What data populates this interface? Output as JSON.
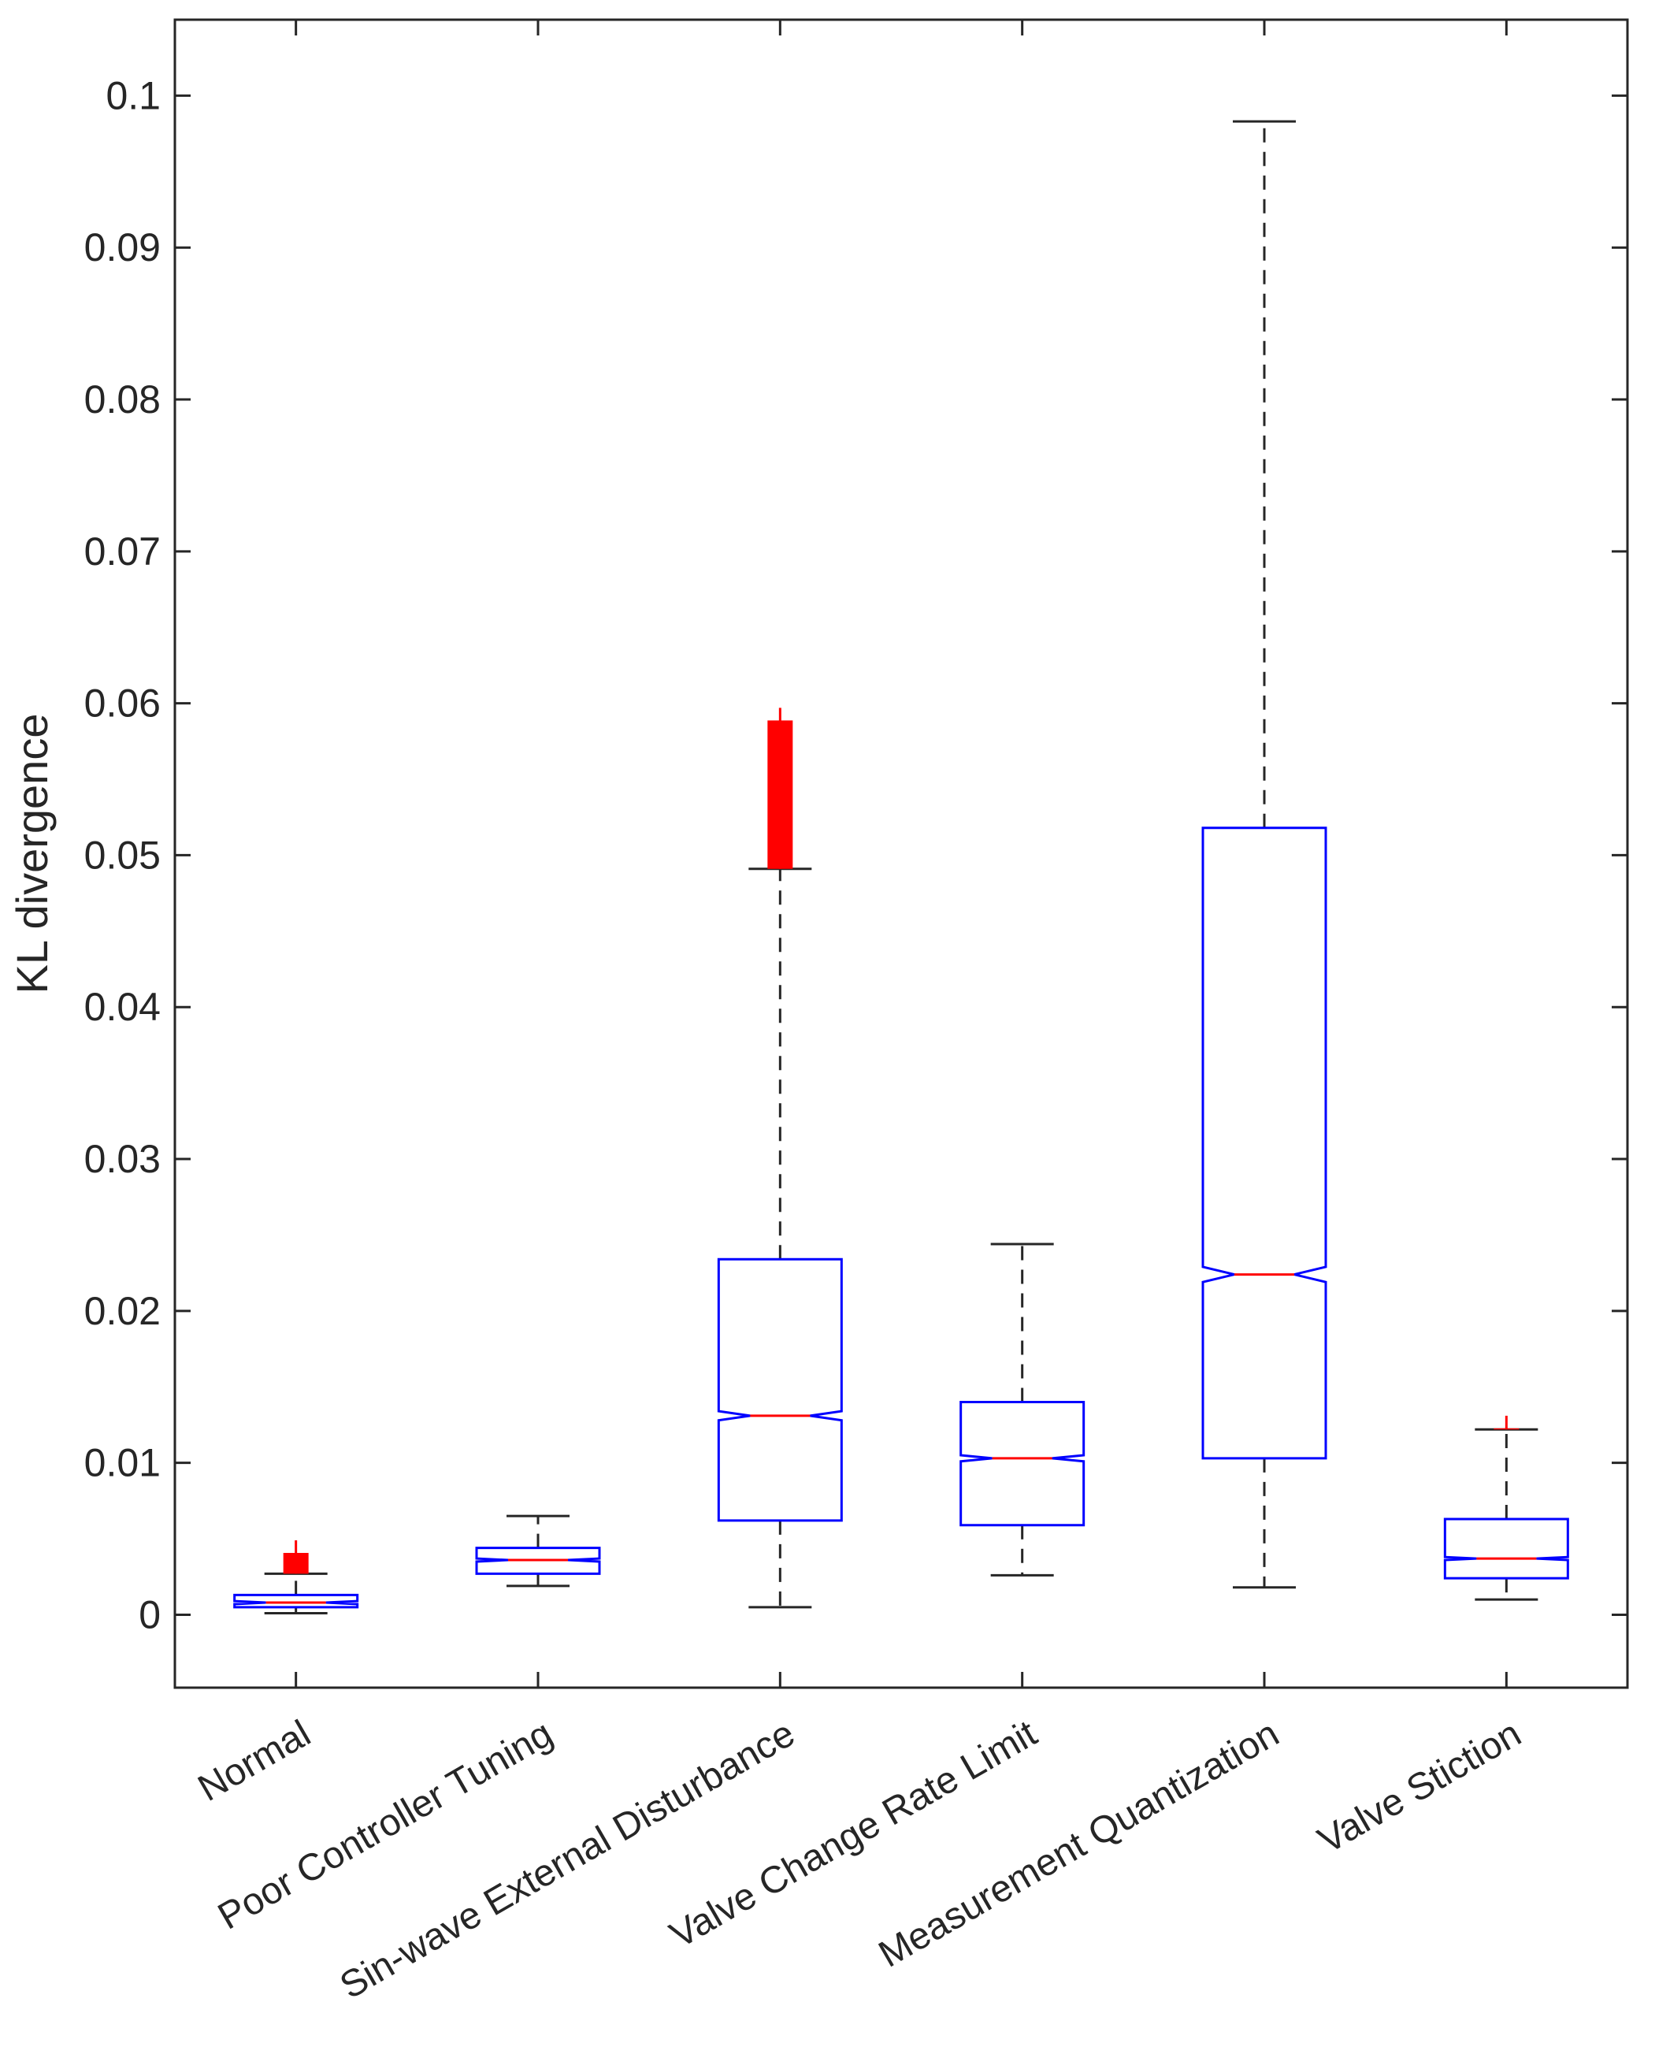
{
  "chart_data": {
    "type": "boxplot",
    "title": "",
    "xlabel": "",
    "ylabel": "KL divergence",
    "ylim": [
      -0.0048,
      0.105
    ],
    "yticks": [
      0,
      0.01,
      0.02,
      0.03,
      0.04,
      0.05,
      0.06,
      0.07,
      0.08,
      0.09,
      0.1
    ],
    "ytick_labels": [
      "0",
      "0.01",
      "0.02",
      "0.03",
      "0.04",
      "0.05",
      "0.06",
      "0.07",
      "0.08",
      "0.09",
      "0.1"
    ],
    "notched": true,
    "categories": [
      "Normal",
      "Poor Controller Tuning",
      "Sin-wave External Disturbance",
      "Valve Change Rate Limit",
      "Measurement Quantization",
      "Valve Stiction"
    ],
    "boxes": [
      {
        "name": "Normal",
        "whisker_low": 0.0001,
        "q1": 0.0005,
        "median": 0.0008,
        "q3": 0.0013,
        "whisker_high": 0.0027,
        "outlier_low": 0.0027,
        "outlier_high": 0.0049,
        "notch_low": 0.0007,
        "notch_high": 0.0009
      },
      {
        "name": "Poor Controller Tuning",
        "whisker_low": 0.0019,
        "q1": 0.0027,
        "median": 0.0036,
        "q3": 0.0044,
        "whisker_high": 0.0065,
        "outlier_low": null,
        "outlier_high": null,
        "notch_low": 0.0035,
        "notch_high": 0.0037
      },
      {
        "name": "Sin-wave External Disturbance",
        "whisker_low": 0.0005,
        "q1": 0.0062,
        "median": 0.0131,
        "q3": 0.0234,
        "whisker_high": 0.0491,
        "outlier_low": 0.0491,
        "outlier_high": 0.0597,
        "notch_low": 0.0128,
        "notch_high": 0.0134
      },
      {
        "name": "Valve Change Rate Limit",
        "whisker_low": 0.0026,
        "q1": 0.0059,
        "median": 0.0103,
        "q3": 0.014,
        "whisker_high": 0.0244,
        "outlier_low": null,
        "outlier_high": null,
        "notch_low": 0.0101,
        "notch_high": 0.0105
      },
      {
        "name": "Measurement Quantization",
        "whisker_low": 0.0018,
        "q1": 0.0103,
        "median": 0.0224,
        "q3": 0.0518,
        "whisker_high": 0.0983,
        "outlier_low": null,
        "outlier_high": null,
        "notch_low": 0.0219,
        "notch_high": 0.0229
      },
      {
        "name": "Valve Stiction",
        "whisker_low": 0.001,
        "q1": 0.0024,
        "median": 0.0037,
        "q3": 0.0063,
        "whisker_high": 0.0122,
        "outlier_low": 0.0122,
        "outlier_high": 0.0131,
        "notch_low": 0.0036,
        "notch_high": 0.0038
      }
    ],
    "colors": {
      "box": "#0000ff",
      "median": "#ff0000",
      "whisker": "#262626",
      "outlier": "#ff0000",
      "axis": "#262626"
    },
    "grid": false,
    "legend": "none"
  }
}
